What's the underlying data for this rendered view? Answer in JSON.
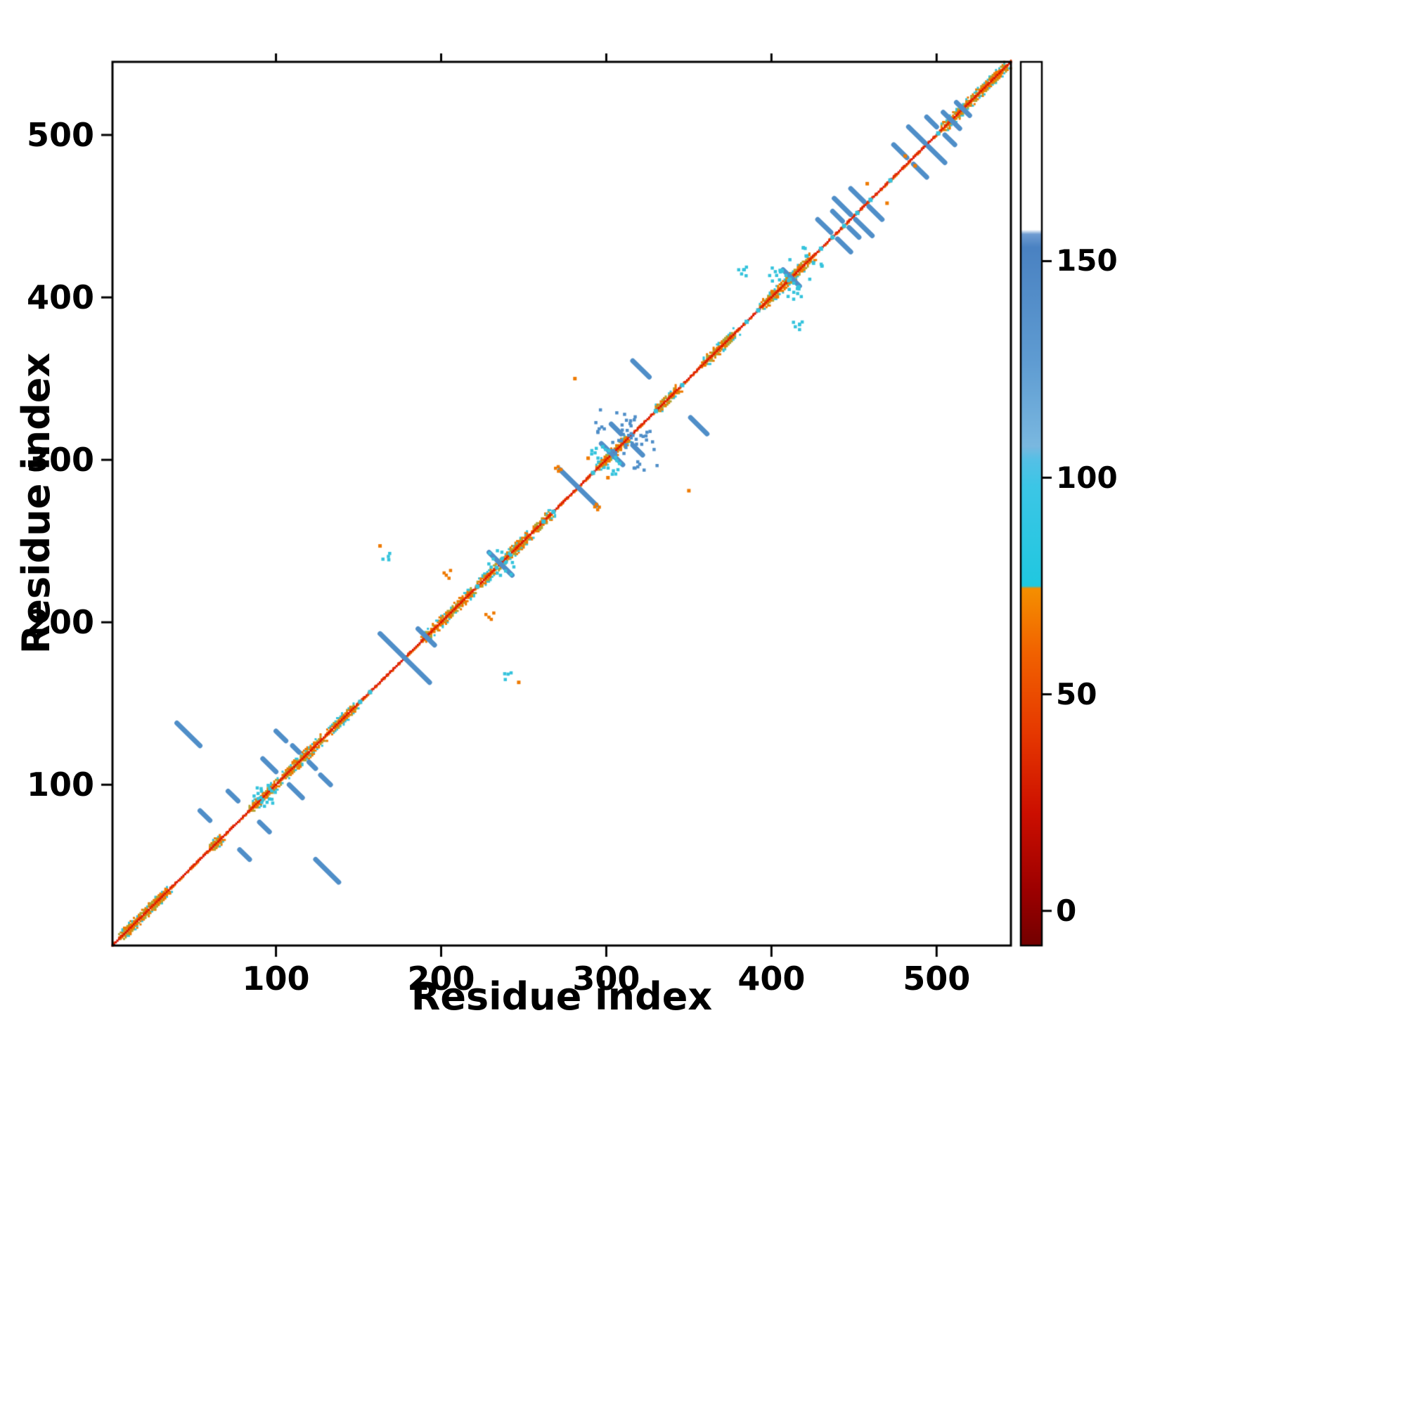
{
  "figure": {
    "background": "#ffffff",
    "frame_color": "#000000"
  },
  "chart_data": {
    "type": "heatmap",
    "title": "",
    "xlabel": "Residue index",
    "ylabel": "Residue index",
    "xlim": [
      1,
      545
    ],
    "ylim": [
      1,
      545
    ],
    "x_ticks": [
      100,
      200,
      300,
      400,
      500
    ],
    "y_ticks": [
      100,
      200,
      300,
      400,
      500
    ],
    "grid": false,
    "legend": null,
    "description": "Symmetric protein residue-residue contact map; main diagonal in red/orange, helical segments as olive textured bands hugging the diagonal, antiparallel contacts as steel-blue anti-diagonal streaks, colored by the 0-150+ colorbar scale",
    "domain": [
      1,
      545
    ],
    "palette": {
      "red": "#dc1400",
      "orange_red": "#e84400",
      "orange": "#ee7a00",
      "tan": "#cf9b3a",
      "olive": "#b0a433",
      "cyan": "#35c3dc",
      "blue": "#4f8ec8",
      "frame": "#000000"
    },
    "diagonal": {
      "start": 1,
      "end": 545
    },
    "helix_segments": [
      [
        5,
        34
      ],
      [
        60,
        66
      ],
      [
        84,
        101
      ],
      [
        104,
        127
      ],
      [
        131,
        147
      ],
      [
        188,
        218
      ],
      [
        221,
        252
      ],
      [
        255,
        266
      ],
      [
        294,
        312
      ],
      [
        330,
        342
      ],
      [
        357,
        377
      ],
      [
        393,
        423
      ],
      [
        503,
        541
      ]
    ],
    "cyan_diag_ticks": [
      151,
      157,
      222,
      262,
      268,
      292,
      330,
      346,
      385,
      392,
      430,
      437,
      444,
      452,
      460,
      472,
      501
    ],
    "crossing_streaks": [
      [
        178,
        15
      ],
      [
        191,
        5
      ],
      [
        236,
        7
      ],
      [
        283,
        11
      ],
      [
        412,
        5
      ],
      [
        509,
        5
      ],
      [
        516,
        4
      ]
    ],
    "streaks": [
      [
        47,
        131,
        7
      ],
      [
        57,
        81,
        3
      ],
      [
        74,
        93,
        3
      ],
      [
        96,
        112,
        4
      ],
      [
        103,
        130,
        3
      ],
      [
        112,
        122,
        2
      ],
      [
        300,
        307,
        3
      ],
      [
        306,
        319,
        3
      ],
      [
        321,
        356,
        5
      ],
      [
        432,
        444,
        4
      ],
      [
        443,
        456,
        5
      ],
      [
        452,
        463,
        4
      ],
      [
        478,
        490,
        4
      ],
      [
        488,
        500,
        5
      ],
      [
        497,
        508,
        3
      ],
      [
        440,
        450,
        3
      ]
    ],
    "clusters": [
      [
        306,
        318,
        13,
        26,
        "blue"
      ],
      [
        296,
        306,
        6,
        9,
        "cyan"
      ],
      [
        404,
        416,
        8,
        14,
        "cyan"
      ],
      [
        384,
        417,
        4,
        6,
        "cyan"
      ],
      [
        237,
        236,
        8,
        10,
        "cyan"
      ],
      [
        92,
        95,
        6,
        9,
        "cyan"
      ],
      [
        166,
        240,
        3,
        4,
        "cyan"
      ],
      [
        230,
        203,
        3,
        4,
        "orange"
      ],
      [
        272,
        294,
        3,
        4,
        "orange"
      ],
      [
        420,
        428,
        3,
        4,
        "cyan"
      ]
    ],
    "orange_dots": [
      [
        458,
        470
      ],
      [
        481,
        487
      ],
      [
        247,
        163
      ],
      [
        289,
        301
      ],
      [
        350,
        281
      ]
    ],
    "colorbar": {
      "ticks": [
        0,
        50,
        100,
        150
      ],
      "domain": [
        -8,
        196
      ],
      "stops": [
        [
          0.0,
          "#730000"
        ],
        [
          0.06,
          "#9b0000"
        ],
        [
          0.15,
          "#cc0f00"
        ],
        [
          0.24,
          "#e63800"
        ],
        [
          0.33,
          "#f16100"
        ],
        [
          0.4,
          "#f58d00"
        ],
        [
          0.404,
          "#f58d00"
        ],
        [
          0.407,
          "#20c8e0"
        ],
        [
          0.52,
          "#3cc6e6"
        ],
        [
          0.55,
          "#55c0e6"
        ],
        [
          0.565,
          "#7ab8e0"
        ],
        [
          0.66,
          "#5f9cd2"
        ],
        [
          0.79,
          "#4a82c2"
        ],
        [
          0.805,
          "#6f9cd2"
        ],
        [
          0.81,
          "#ffffff"
        ],
        [
          1.0,
          "#ffffff"
        ]
      ]
    }
  }
}
